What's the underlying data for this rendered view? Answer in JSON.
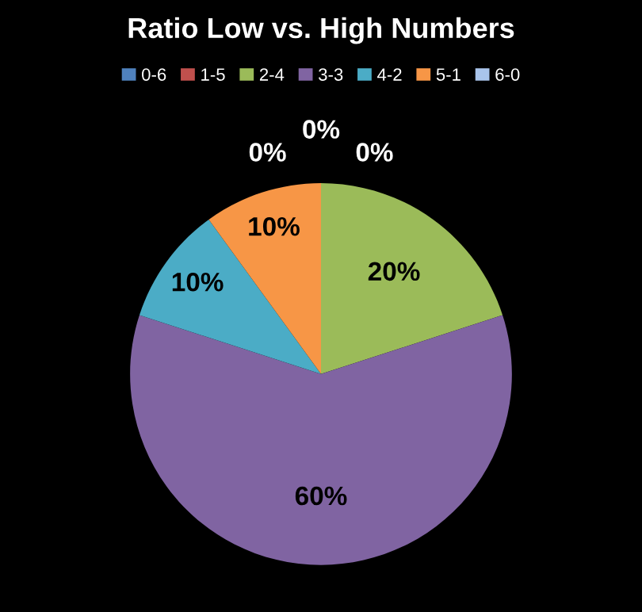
{
  "chart_data": {
    "type": "pie",
    "title": "Ratio Low vs. High Numbers",
    "categories": [
      "0-6",
      "1-5",
      "2-4",
      "3-3",
      "4-2",
      "5-1",
      "6-0"
    ],
    "values": [
      0,
      0,
      20,
      60,
      10,
      10,
      0
    ],
    "value_labels": [
      "0%",
      "0%",
      "20%",
      "60%",
      "10%",
      "10%",
      "0%"
    ],
    "colors": [
      "#4f81bd",
      "#c0504d",
      "#9bbb59",
      "#8064a2",
      "#4bacc6",
      "#f79646",
      "#a9c4eb"
    ],
    "legend": "top"
  }
}
